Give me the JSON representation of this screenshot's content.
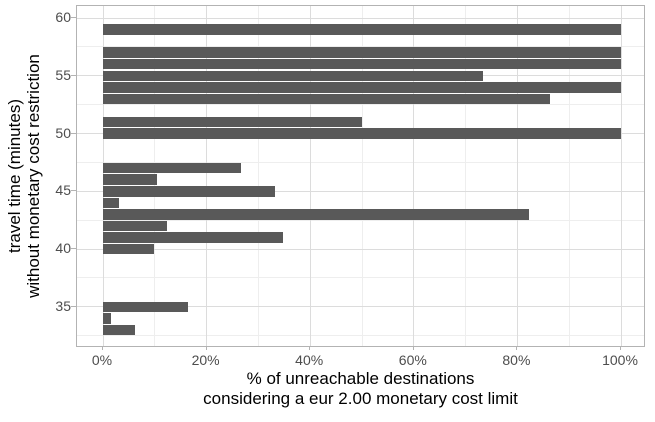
{
  "chart_data": {
    "type": "bar",
    "orientation": "horizontal",
    "bar_color": "#595959",
    "grid": "on",
    "legend": "none",
    "xlabel": "% of unreachable destinations\nconsidering a eur 2.00 monetary cost limit",
    "ylabel": "travel time (minutes)\nwithout monetary cost restriction",
    "xlim": [
      -5,
      105
    ],
    "ylim": [
      31.5,
      60.9
    ],
    "points": [
      {
        "travel_time": 59,
        "pct_unreachable": 100
      },
      {
        "travel_time": 57,
        "pct_unreachable": 100
      },
      {
        "travel_time": 56,
        "pct_unreachable": 100
      },
      {
        "travel_time": 55,
        "pct_unreachable": 73.4
      },
      {
        "travel_time": 54,
        "pct_unreachable": 100
      },
      {
        "travel_time": 53,
        "pct_unreachable": 86.3
      },
      {
        "travel_time": 51,
        "pct_unreachable": 50.0
      },
      {
        "travel_time": 50,
        "pct_unreachable": 100
      },
      {
        "travel_time": 47,
        "pct_unreachable": 26.7
      },
      {
        "travel_time": 46,
        "pct_unreachable": 10.4
      },
      {
        "travel_time": 45,
        "pct_unreachable": 33.2
      },
      {
        "travel_time": 44,
        "pct_unreachable": 3.1
      },
      {
        "travel_time": 43,
        "pct_unreachable": 82.2
      },
      {
        "travel_time": 42,
        "pct_unreachable": 12.3
      },
      {
        "travel_time": 41,
        "pct_unreachable": 34.8
      },
      {
        "travel_time": 40,
        "pct_unreachable": 9.8
      },
      {
        "travel_time": 35,
        "pct_unreachable": 16.5
      },
      {
        "travel_time": 34,
        "pct_unreachable": 1.5
      },
      {
        "travel_time": 33,
        "pct_unreachable": 6.2
      }
    ],
    "x_major_ticks": [
      0,
      20,
      40,
      60,
      80,
      100
    ],
    "x_minor_ticks": [
      10,
      30,
      50,
      70,
      90
    ],
    "y_major_ticks": [
      60,
      55,
      50,
      45,
      40,
      35
    ],
    "y_minor_ticks": [
      57.5,
      52.5,
      47.5,
      42.5,
      37.5,
      32.5
    ]
  },
  "x_axis": {
    "title_line1": "% of unreachable destinations",
    "title_line2": "considering a eur 2.00 monetary cost limit",
    "tick_labels": [
      "0%",
      "20%",
      "40%",
      "60%",
      "80%",
      "100%"
    ]
  },
  "y_axis": {
    "title_line1": "travel time (minutes)",
    "title_line2": "without monetary cost restriction",
    "tick_labels": [
      "60",
      "55",
      "50",
      "45",
      "40",
      "35"
    ]
  }
}
